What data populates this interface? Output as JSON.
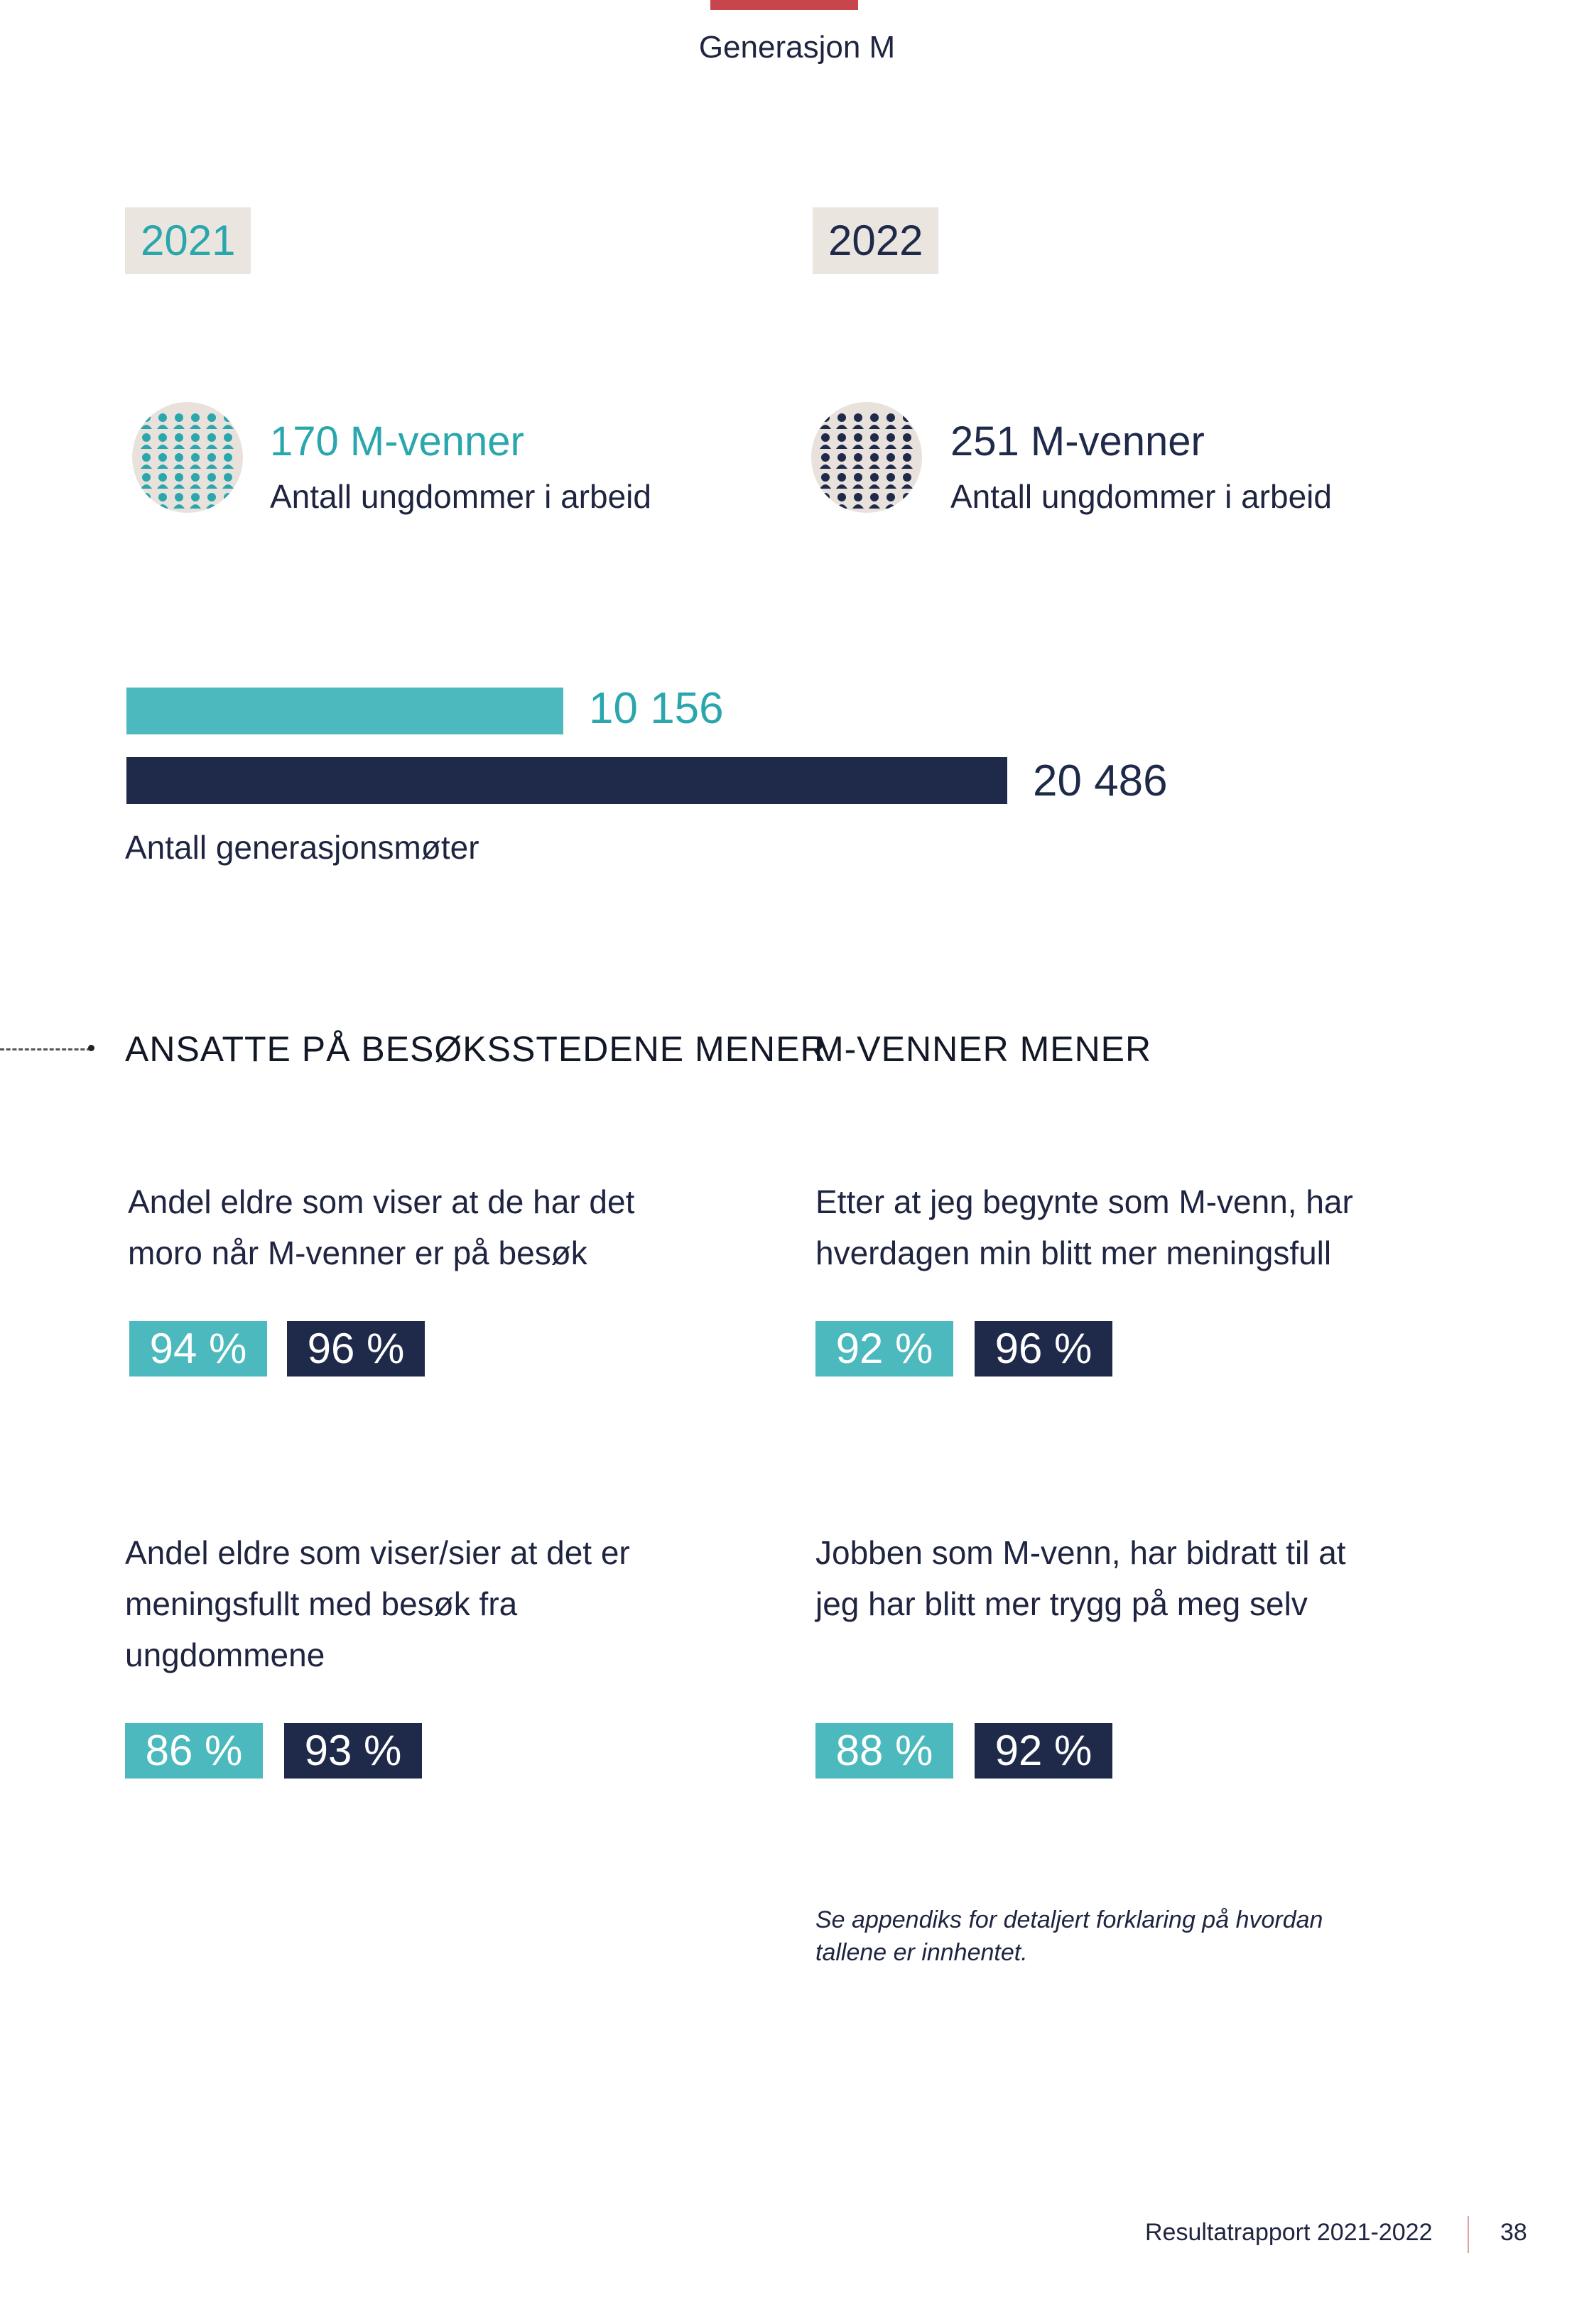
{
  "header": {
    "title": "Generasjon M",
    "accent_color": "#c8454b"
  },
  "years": {
    "left": "2021",
    "right": "2022"
  },
  "stats": {
    "left": {
      "value": "170 M-venner",
      "label": "Antall ungdommer i arbeid",
      "icon": "people-grid-icon",
      "color": "#2aa7ad"
    },
    "right": {
      "value": "251 M-venner",
      "label": "Antall ungdommer i arbeid",
      "icon": "people-grid-icon",
      "color": "#1f2a4a"
    }
  },
  "meetings": {
    "caption": "Antall generasjonsmøter",
    "bars": [
      {
        "year": "2021",
        "value": 10156,
        "label": "10 156",
        "color": "#4bb9bd"
      },
      {
        "year": "2022",
        "value": 20486,
        "label": "20 486",
        "color": "#1f2a4a"
      }
    ]
  },
  "sections": {
    "left": {
      "title": "ANSATTE PÅ BESØKSSTEDENE MENER",
      "items": [
        {
          "question": "Andel eldre som viser at de har det moro når M-venner er på besøk",
          "v2021": "94 %",
          "v2022": "96 %"
        },
        {
          "question": "Andel eldre som viser/sier at det er meningsfullt med besøk fra ungdommene",
          "v2021": "86 %",
          "v2022": "93 %"
        }
      ]
    },
    "right": {
      "title": "M-VENNER MENER",
      "items": [
        {
          "question": "Etter at jeg begynte som M-venn, har hverdagen min blitt mer meningsfull",
          "v2021": "92 %",
          "v2022": "96 %"
        },
        {
          "question": "Jobben som M-venn, har bidratt til at jeg har blitt mer trygg på meg selv",
          "v2021": "88 %",
          "v2022": "92 %"
        }
      ]
    }
  },
  "note": "Se appendiks for detaljert forklaring på hvordan tallene er innhentet.",
  "footer": {
    "report": "Resultatrapport 2021-2022",
    "page": "38"
  }
}
